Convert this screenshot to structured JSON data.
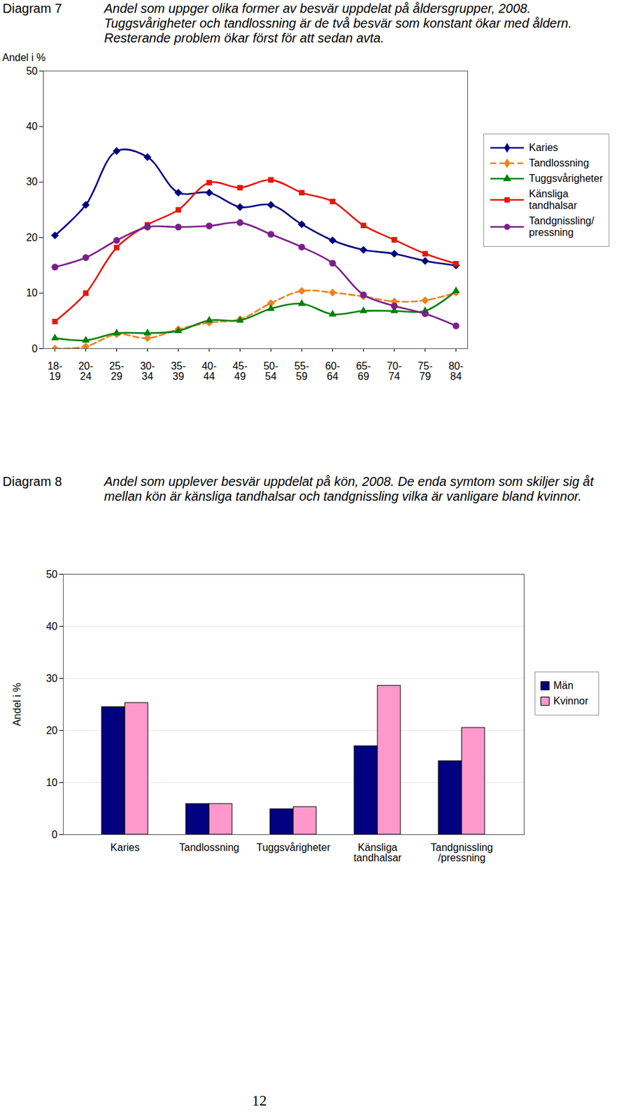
{
  "page_number": 12,
  "chart_data": [
    {
      "type": "line",
      "title": "Diagram 7",
      "subtitle": "Andel som uppger olika former av besvär uppdelat på åldersgrupper, 2008. Tuggsvårigheter och tandlossning är de två besvär som konstant ökar med åldern. Resterande problem ökar först för att sedan avta.",
      "ylabel": "Andel i %",
      "categories": [
        "18-19",
        "20-24",
        "25-29",
        "30-34",
        "35-39",
        "40-44",
        "45-49",
        "50-54",
        "55-59",
        "60-64",
        "65-69",
        "70-74",
        "75-79",
        "80-84"
      ],
      "series": [
        {
          "name": "Karies",
          "color": "#000080",
          "marker": "diamond",
          "line_style": "solid",
          "values": [
            20.4,
            25.9,
            35.6,
            34.5,
            28.1,
            28.1,
            25.5,
            25.9,
            22.4,
            19.5,
            17.8,
            17.1,
            15.8,
            15.0
          ]
        },
        {
          "name": "Tandlossning",
          "color": "#f08020",
          "marker": "diamond",
          "line_style": "dashed",
          "values": [
            0.0,
            0.4,
            2.6,
            1.9,
            3.5,
            4.7,
            5.3,
            8.2,
            10.4,
            10.1,
            9.4,
            8.5,
            8.7,
            10.1
          ]
        },
        {
          "name": "Tuggsvårigheter",
          "color": "#008000",
          "marker": "triangle",
          "line_style": "solid",
          "values": [
            1.9,
            1.5,
            2.8,
            2.8,
            3.2,
            5.1,
            5.1,
            7.2,
            8.1,
            6.2,
            6.8,
            6.8,
            6.8,
            10.4
          ]
        },
        {
          "name": "Känsliga tandhalsar",
          "color": "#e8160c",
          "marker": "square",
          "line_style": "solid",
          "values": [
            4.9,
            10.0,
            18.2,
            22.3,
            25.0,
            29.9,
            29.0,
            30.4,
            28.1,
            26.5,
            22.2,
            19.6,
            17.1,
            15.3
          ]
        },
        {
          "name": "Tandgnissling/ pressning",
          "color": "#7b1f8a",
          "marker": "circle",
          "line_style": "solid",
          "values": [
            14.7,
            16.4,
            19.5,
            21.9,
            21.9,
            22.1,
            22.7,
            20.6,
            18.3,
            15.4,
            9.7,
            7.7,
            6.3,
            4.1
          ]
        }
      ],
      "ylim": [
        0,
        50
      ],
      "yticks": [
        0,
        10,
        20,
        30,
        40,
        50
      ],
      "grid": false,
      "legend": "right"
    },
    {
      "type": "bar",
      "title": "Diagram 8",
      "subtitle": "Andel som upplever besvär uppdelat på kön, 2008. De enda symtom som skiljer sig åt mellan kön är känsliga tandhalsar och tandgnissling vilka är vanligare bland kvinnor.",
      "ylabel": "Andel i %",
      "categories": [
        "Karies",
        "Tandlossning",
        "Tuggsvårigheter",
        "Känsliga tandhalsar",
        "Tandgnissling /pressning"
      ],
      "series": [
        {
          "name": "Män",
          "color": "#000080",
          "values": [
            24.5,
            5.9,
            4.9,
            17.0,
            14.1
          ]
        },
        {
          "name": "Kvinnor",
          "color": "#ff99cc",
          "values": [
            25.3,
            5.9,
            5.3,
            28.6,
            20.5
          ]
        }
      ],
      "ylim": [
        0,
        50
      ],
      "yticks": [
        0,
        10,
        20,
        30,
        40,
        50
      ],
      "grid": true,
      "legend": "right"
    }
  ]
}
